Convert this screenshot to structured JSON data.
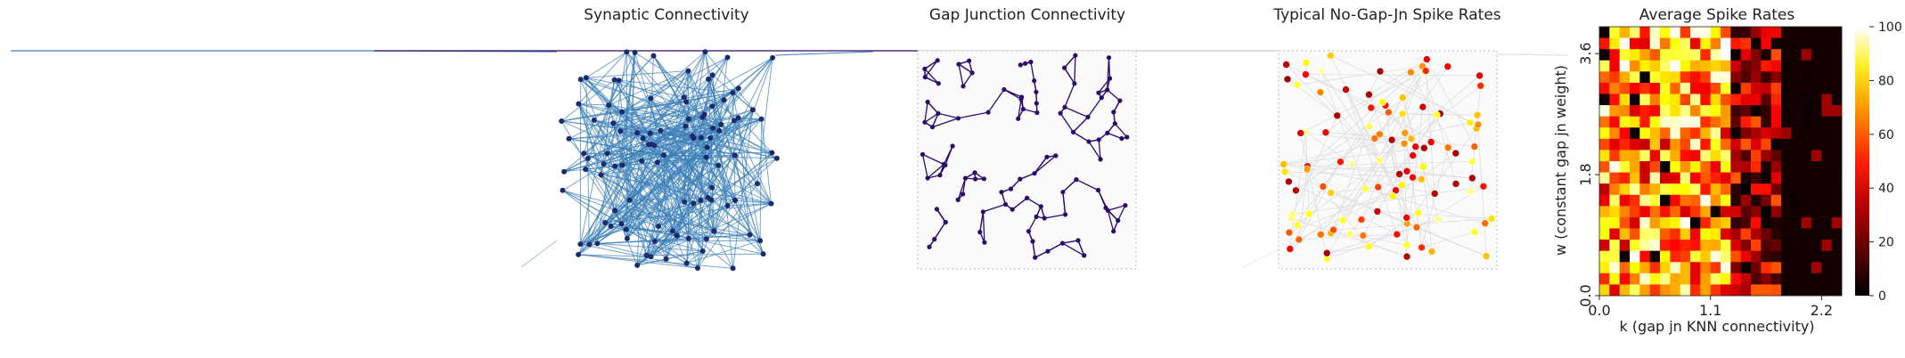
{
  "chart_data": [
    {
      "type": "network",
      "title": "Synaptic Connectivity",
      "edge_color": "#3a7fb8",
      "node_color": "#1a2a6c"
    },
    {
      "type": "network",
      "title": "Gap Junction Connectivity",
      "edge_color": "#2c0a6e",
      "node_color": "#2c0a6e"
    },
    {
      "type": "scatter",
      "title": "Typical No-Gap-Jn Spike Rates",
      "colormap": "hot",
      "edge_color": "#dddddd"
    },
    {
      "type": "heatmap",
      "title": "Average Spike Rates",
      "xlabel": "k (gap jn KNN connectivity)",
      "ylabel": "w (constant gap jn weight)",
      "xticks": [
        "0.0",
        "1.1",
        "2.2"
      ],
      "yticks": [
        "0.0",
        "1.8",
        "3.6"
      ],
      "xlim": [
        0,
        2.4
      ],
      "ylim": [
        0,
        4.0
      ],
      "rows": 24,
      "cols": 24,
      "colormap": "hot",
      "colorbar": {
        "min": 0,
        "max": 100,
        "ticks": [
          "0",
          "20",
          "40",
          "60",
          "80",
          "100"
        ]
      }
    }
  ]
}
